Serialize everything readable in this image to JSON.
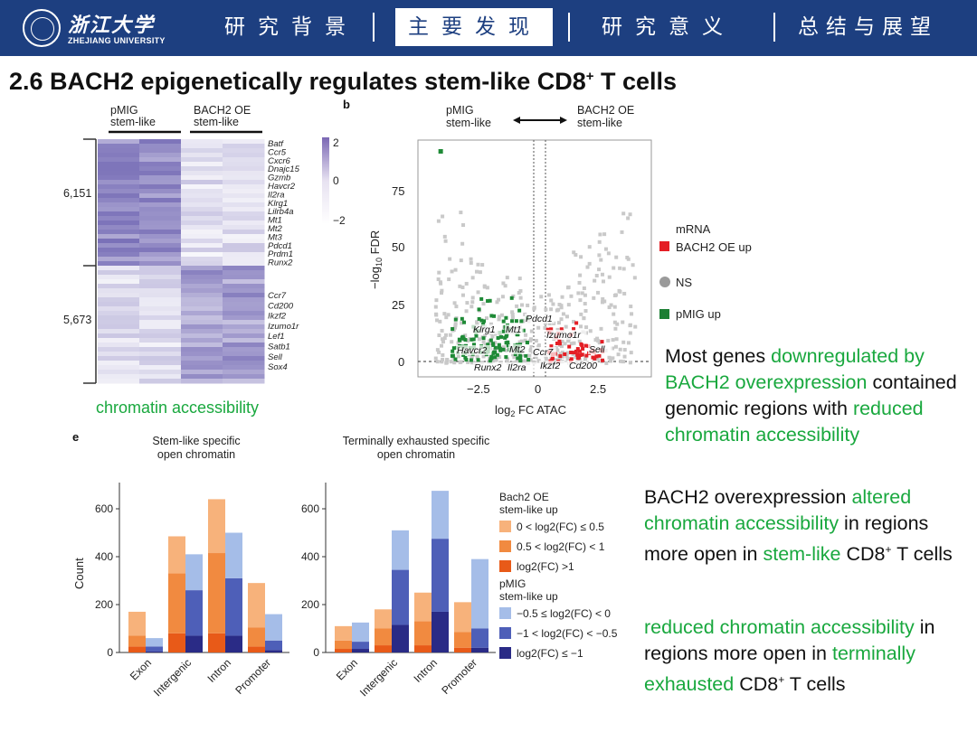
{
  "header": {
    "logo_cn": "浙江大学",
    "logo_en": "ZHEJIANG UNIVERSITY",
    "nav": [
      "研究背景",
      "主要发现",
      "研究意义",
      "总结与展望"
    ],
    "active_index": 1
  },
  "title": {
    "main": "2.6 BACH2 epigenetically regulates stem-like CD8",
    "sup": "+",
    "tail": " T cells"
  },
  "heatmap": {
    "col_labels": [
      "pMIG\nstem-like",
      "BACH2 OE\nstem-like"
    ],
    "cluster_labels": [
      "6,151",
      "5,673"
    ],
    "genes_top": [
      "Batf",
      "Ccr5",
      "Cxcr6",
      "Dnajc15",
      "Gzmb",
      "Havcr2",
      "Il2ra",
      "Klrg1",
      "Lilrb4a",
      "Mt1",
      "Mt2",
      "Mt3",
      "Pdcd1",
      "Prdm1",
      "Runx2"
    ],
    "genes_bottom": [
      "Ccr7",
      "Cd200",
      "Ikzf2",
      "Izumo1r",
      "Lef1",
      "Satb1",
      "Sell",
      "Sox4"
    ],
    "scale_labels": [
      "2",
      "0",
      "−2"
    ],
    "caption": "chromatin accessibility"
  },
  "volcano": {
    "panel": "b",
    "left_label": "pMIG\nstem-like",
    "right_label": "BACH2 OE\nstem-like",
    "y_ticks": [
      "75",
      "50",
      "25",
      "0"
    ],
    "x_ticks": [
      "−2.5",
      "0",
      "2.5"
    ],
    "y_label": "−log10 FDR",
    "x_label": "log2 FC ATAC",
    "legend_title": "mRNA",
    "legend": [
      "BACH2 OE up",
      "NS",
      "pMIG up"
    ],
    "gene_labels": [
      "Pdcd1",
      "Klrg1",
      "Mt1",
      "Havcr2",
      "Mt2",
      "Ccr7",
      "Izumo1r",
      "Sell",
      "Runx2",
      "Il2ra",
      "Ikzf2",
      "Cd200"
    ]
  },
  "bars": {
    "panel": "e",
    "titles": [
      "Stem-like specific\nopen chromatin",
      "Terminally exhausted specific\nopen chromatin"
    ],
    "y_ticks": [
      "600",
      "400",
      "200",
      "0"
    ],
    "y_label": "Count",
    "categories": [
      "Exon",
      "Intergenic",
      "Intron",
      "Promoter"
    ],
    "legend_oe_title": "Bach2 OE\nstem-like up",
    "legend_oe": [
      "0 < log2(FC) ≤ 0.5",
      "0.5 < log2(FC) < 1",
      "log2(FC) >1"
    ],
    "legend_pmig_title": "pMIG\nstem-like up",
    "legend_pmig": [
      "−0.5 ≤ log2(FC) < 0",
      "−1 < log2(FC) < −0.5",
      "log2(FC) ≤ −1"
    ],
    "stem_like": {
      "oe": [
        [
          25,
          45,
          100
        ],
        [
          80,
          250,
          155
        ],
        [
          80,
          335,
          225
        ],
        [
          25,
          80,
          185
        ]
      ],
      "pmig": [
        [
          5,
          20,
          35
        ],
        [
          70,
          190,
          150
        ],
        [
          70,
          240,
          190
        ],
        [
          10,
          40,
          110
        ]
      ]
    },
    "exhausted": {
      "oe": [
        [
          15,
          35,
          60
        ],
        [
          30,
          70,
          80
        ],
        [
          30,
          100,
          120
        ],
        [
          20,
          65,
          125
        ]
      ],
      "pmig": [
        [
          15,
          30,
          80
        ],
        [
          115,
          230,
          165
        ],
        [
          170,
          305,
          200
        ],
        [
          20,
          80,
          290
        ]
      ]
    },
    "colors": {
      "oe": [
        "#f7b27b",
        "#f18a40",
        "#e85a18"
      ],
      "pmig": [
        "#a5bde8",
        "#4e5fb8",
        "#2a2b86"
      ]
    }
  },
  "text1": [
    {
      "t": "Most genes ",
      "g": false
    },
    {
      "t": "downregulated by BACH2 overexpression",
      "g": true
    },
    {
      "t": " contained genomic regions with ",
      "g": false
    },
    {
      "t": "reduced chromatin accessibility",
      "g": true
    }
  ],
  "text2": {
    "a": "BACH2 overexpression ",
    "b": "altered chromatin accessibility",
    "c": " in regions more open in ",
    "d": "stem-like",
    "e": " CD8",
    "sup": "+",
    "f": " T cells"
  },
  "text3": {
    "a": "reduced chromatin accessibility",
    "b": " in regions more open in ",
    "c": "terminally exhausted",
    "d": " CD8",
    "sup": "+",
    "e": " T cells"
  },
  "colors": {
    "header": "#1d3f80",
    "green": "#19a83e"
  }
}
